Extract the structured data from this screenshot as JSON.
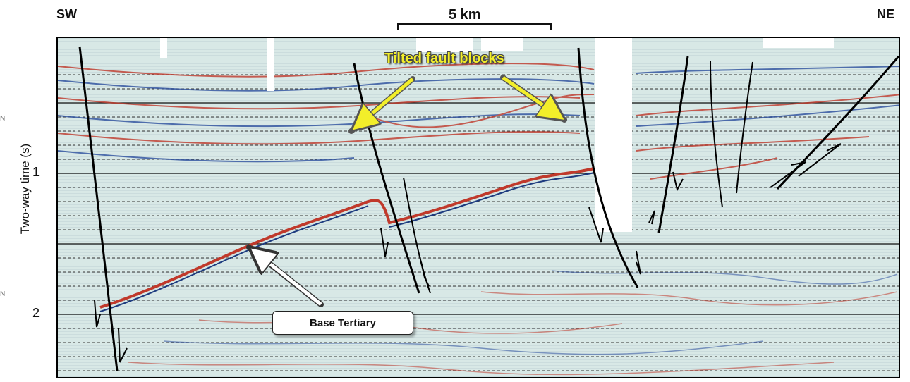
{
  "header": {
    "left_direction": "SW",
    "right_direction": "NE",
    "scale_label": "5 km"
  },
  "axis": {
    "y_title": "Two-way time (s)",
    "y_ticks": [
      "1",
      "2"
    ],
    "stray_left_marks": [
      "N",
      "N"
    ]
  },
  "annotations": {
    "tilted_label": "Tilted fault blocks",
    "base_label": "Base Tertiary",
    "tilted_color": "#f2ee2a",
    "reflector_red": "#c0392b",
    "reflector_blue": "#2c4f9e"
  }
}
